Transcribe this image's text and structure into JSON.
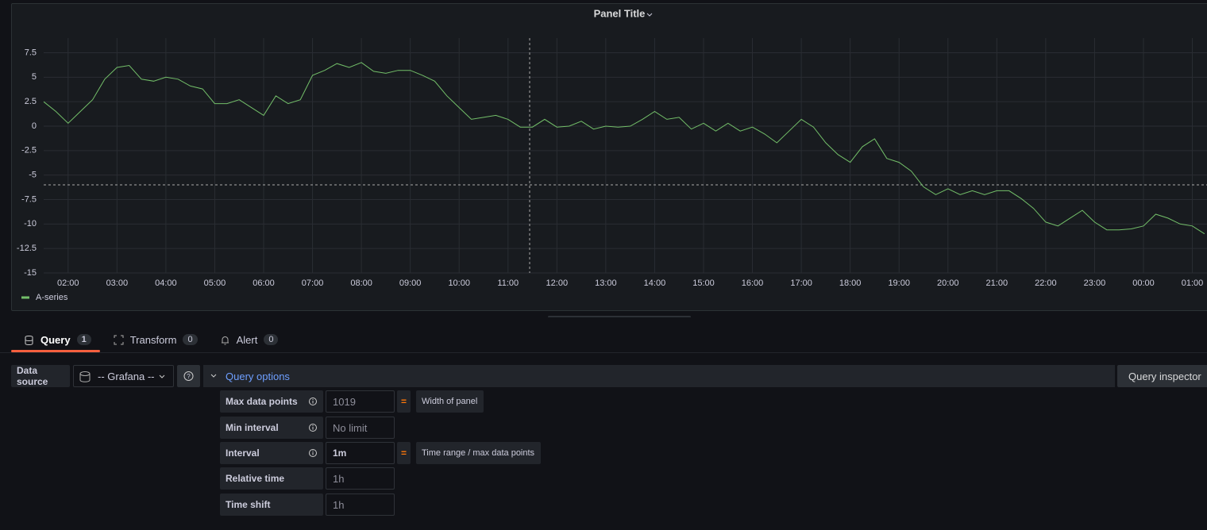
{
  "chart_data": {
    "type": "line",
    "title": "Panel Title",
    "x": [
      1.5,
      1.75,
      2,
      2.25,
      2.5,
      2.75,
      3,
      3.25,
      3.5,
      3.75,
      4,
      4.25,
      4.5,
      4.75,
      5,
      5.25,
      5.5,
      5.75,
      6,
      6.25,
      6.5,
      6.75,
      7,
      7.25,
      7.5,
      7.75,
      8,
      8.25,
      8.5,
      8.75,
      9,
      9.25,
      9.5,
      9.75,
      10,
      10.25,
      10.5,
      10.75,
      11,
      11.25,
      11.5,
      11.75,
      12,
      12.25,
      12.5,
      12.75,
      13,
      13.25,
      13.5,
      13.75,
      14,
      14.25,
      14.5,
      14.75,
      15,
      15.25,
      15.5,
      15.75,
      16,
      16.25,
      16.5,
      16.75,
      17,
      17.25,
      17.5,
      17.75,
      18,
      18.25,
      18.5,
      18.75,
      19,
      19.25,
      19.5,
      19.75,
      20,
      20.25,
      20.5,
      20.75,
      21,
      21.25,
      21.5,
      21.75,
      22,
      22.25,
      22.5,
      22.75,
      23,
      23.25,
      23.5,
      23.75,
      24,
      24.25,
      24.5,
      24.75,
      25,
      25.25
    ],
    "series": [
      {
        "name": "A-series",
        "color": "#73bf69",
        "values": [
          2.5,
          1.5,
          0.3,
          1.5,
          2.7,
          4.8,
          6.0,
          6.2,
          4.8,
          4.6,
          5.0,
          4.8,
          4.1,
          3.8,
          2.3,
          2.3,
          2.7,
          1.9,
          1.1,
          3.1,
          2.3,
          2.7,
          5.2,
          5.7,
          6.4,
          6.0,
          6.5,
          5.6,
          5.4,
          5.7,
          5.7,
          5.2,
          4.6,
          3.1,
          1.9,
          0.7,
          0.9,
          1.1,
          0.7,
          -0.1,
          -0.1,
          0.7,
          -0.1,
          0,
          0.5,
          -0.3,
          0,
          -0.1,
          0,
          0.7,
          1.5,
          0.7,
          0.9,
          -0.3,
          0.3,
          -0.5,
          0.3,
          -0.5,
          -0.1,
          -0.8,
          -1.7,
          -0.5,
          0.7,
          -0.1,
          -1.7,
          -2.9,
          -3.7,
          -2.1,
          -1.3,
          -3.3,
          -3.7,
          -4.6,
          -6.2,
          -7.0,
          -6.4,
          -7.0,
          -6.6,
          -7.0,
          -6.6,
          -6.6,
          -7.4,
          -8.4,
          -9.8,
          -10.2,
          -9.4,
          -8.6,
          -9.8,
          -10.6,
          -10.6,
          -10.5,
          -10.2,
          -9.0,
          -9.4,
          -10.0,
          -10.2,
          -11.0
        ]
      }
    ],
    "xlim": [
      1.5,
      25.3
    ],
    "ylim": [
      -15,
      9
    ],
    "xticks": [
      {
        "value": 2,
        "label": "02:00"
      },
      {
        "value": 3,
        "label": "03:00"
      },
      {
        "value": 4,
        "label": "04:00"
      },
      {
        "value": 5,
        "label": "05:00"
      },
      {
        "value": 6,
        "label": "06:00"
      },
      {
        "value": 7,
        "label": "07:00"
      },
      {
        "value": 8,
        "label": "08:00"
      },
      {
        "value": 9,
        "label": "09:00"
      },
      {
        "value": 10,
        "label": "10:00"
      },
      {
        "value": 11,
        "label": "11:00"
      },
      {
        "value": 12,
        "label": "12:00"
      },
      {
        "value": 13,
        "label": "13:00"
      },
      {
        "value": 14,
        "label": "14:00"
      },
      {
        "value": 15,
        "label": "15:00"
      },
      {
        "value": 16,
        "label": "16:00"
      },
      {
        "value": 17,
        "label": "17:00"
      },
      {
        "value": 18,
        "label": "18:00"
      },
      {
        "value": 19,
        "label": "19:00"
      },
      {
        "value": 20,
        "label": "20:00"
      },
      {
        "value": 21,
        "label": "21:00"
      },
      {
        "value": 22,
        "label": "22:00"
      },
      {
        "value": 23,
        "label": "23:00"
      },
      {
        "value": 24,
        "label": "00:00"
      },
      {
        "value": 25,
        "label": "01:00"
      }
    ],
    "yticks": [
      -15,
      -12.5,
      -10,
      -7.5,
      -5,
      -2.5,
      0,
      2.5,
      5,
      7.5
    ],
    "grid": true,
    "legend": "bottom-left"
  },
  "tabs": [
    {
      "label": "Query",
      "count": 1
    },
    {
      "label": "Transform",
      "count": 0
    },
    {
      "label": "Alert",
      "count": 0
    }
  ],
  "data_source": {
    "label": "Data source",
    "value": "-- Grafana --"
  },
  "query_options": {
    "title": "Query options",
    "rows": [
      {
        "label": "Max data points",
        "value": "1019",
        "placeholder": true,
        "sign": "=",
        "note": "Width of panel"
      },
      {
        "label": "Min interval",
        "value": "No limit",
        "placeholder": true
      },
      {
        "label": "Interval",
        "value": "1m",
        "placeholder": false,
        "sign": "=",
        "note": "Time range / max data points"
      },
      {
        "label": "Relative time",
        "value": "1h",
        "placeholder": true
      },
      {
        "label": "Time shift",
        "value": "1h",
        "placeholder": true
      }
    ]
  },
  "query_inspector": "Query inspector"
}
